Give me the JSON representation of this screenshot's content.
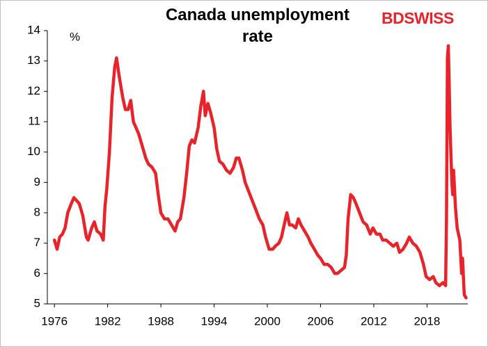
{
  "logo": "BDSWISS",
  "chart_data": {
    "type": "line",
    "title": "Canada unemployment rate",
    "y_label": "%",
    "xlim": [
      1975.2,
      2022.6
    ],
    "xticks": [
      1976,
      1982,
      1988,
      1994,
      2000,
      2006,
      2012,
      2018
    ],
    "ylim": [
      5,
      14
    ],
    "yticks": [
      5,
      6,
      7,
      8,
      9,
      10,
      11,
      12,
      13,
      14
    ],
    "grid": false,
    "x": [
      1976.0,
      1976.3,
      1976.6,
      1976.9,
      1977.2,
      1977.5,
      1977.9,
      1978.2,
      1978.5,
      1978.8,
      1979.2,
      1979.6,
      1979.8,
      1980.2,
      1980.5,
      1980.8,
      1981.2,
      1981.5,
      1981.7,
      1981.9,
      1982.2,
      1982.5,
      1982.8,
      1983.0,
      1983.3,
      1983.7,
      1984.0,
      1984.3,
      1984.6,
      1984.9,
      1985.2,
      1985.5,
      1985.9,
      1986.3,
      1986.6,
      1987.0,
      1987.4,
      1987.7,
      1988.0,
      1988.4,
      1988.8,
      1989.2,
      1989.6,
      1989.9,
      1990.2,
      1990.6,
      1990.9,
      1991.2,
      1991.5,
      1991.8,
      1992.2,
      1992.5,
      1992.8,
      1993.0,
      1993.3,
      1993.6,
      1994.0,
      1994.3,
      1994.6,
      1995.0,
      1995.4,
      1995.8,
      1996.2,
      1996.5,
      1996.8,
      1997.2,
      1997.5,
      1997.9,
      1998.3,
      1998.7,
      1999.1,
      1999.5,
      1999.8,
      2000.2,
      2000.6,
      2000.9,
      2001.3,
      2001.6,
      2001.9,
      2002.2,
      2002.5,
      2002.8,
      2003.2,
      2003.5,
      2003.8,
      2004.2,
      2004.6,
      2004.9,
      2005.3,
      2005.7,
      2006.0,
      2006.4,
      2006.8,
      2007.2,
      2007.6,
      2007.9,
      2008.3,
      2008.7,
      2008.9,
      2009.1,
      2009.4,
      2009.7,
      2010.0,
      2010.4,
      2010.8,
      2011.2,
      2011.6,
      2011.9,
      2012.3,
      2012.7,
      2013.0,
      2013.4,
      2013.8,
      2014.2,
      2014.6,
      2014.9,
      2015.3,
      2015.7,
      2016.0,
      2016.4,
      2016.8,
      2017.2,
      2017.6,
      2017.9,
      2018.3,
      2018.7,
      2019.0,
      2019.4,
      2019.8,
      2020.1,
      2020.2,
      2020.3,
      2020.4,
      2020.5,
      2020.6,
      2020.8,
      2020.9,
      2021.0,
      2021.2,
      2021.4,
      2021.7,
      2021.9,
      2022.0,
      2022.2,
      2022.4
    ],
    "series": [
      {
        "name": "Canada unemployment rate",
        "color": "#e8232a",
        "values": [
          7.1,
          6.8,
          7.2,
          7.3,
          7.5,
          8.0,
          8.3,
          8.5,
          8.4,
          8.3,
          7.9,
          7.2,
          7.1,
          7.5,
          7.7,
          7.4,
          7.3,
          7.1,
          8.2,
          8.8,
          10.0,
          11.8,
          12.8,
          13.1,
          12.5,
          11.8,
          11.4,
          11.4,
          11.7,
          11.0,
          10.8,
          10.6,
          10.2,
          9.8,
          9.6,
          9.5,
          9.3,
          8.6,
          8.0,
          7.8,
          7.8,
          7.6,
          7.4,
          7.7,
          7.8,
          8.5,
          9.3,
          10.2,
          10.4,
          10.3,
          10.8,
          11.5,
          12.0,
          11.2,
          11.6,
          11.3,
          10.8,
          10.1,
          9.7,
          9.6,
          9.4,
          9.3,
          9.5,
          9.8,
          9.8,
          9.4,
          9.0,
          8.7,
          8.4,
          8.1,
          7.8,
          7.6,
          7.2,
          6.8,
          6.8,
          6.9,
          7.0,
          7.2,
          7.6,
          8.0,
          7.6,
          7.6,
          7.5,
          7.8,
          7.6,
          7.4,
          7.2,
          7.0,
          6.8,
          6.6,
          6.5,
          6.3,
          6.3,
          6.2,
          6.0,
          6.0,
          6.1,
          6.2,
          6.6,
          7.8,
          8.6,
          8.5,
          8.3,
          8.0,
          7.7,
          7.6,
          7.3,
          7.5,
          7.3,
          7.3,
          7.1,
          7.1,
          7.0,
          6.9,
          7.0,
          6.7,
          6.8,
          7.0,
          7.2,
          7.0,
          6.9,
          6.7,
          6.3,
          5.9,
          5.8,
          5.9,
          5.7,
          5.6,
          5.7,
          5.6,
          7.8,
          13.1,
          13.5,
          12.3,
          10.8,
          9.0,
          8.6,
          9.4,
          8.2,
          7.5,
          7.1,
          6.0,
          6.5,
          5.3,
          5.2
        ]
      }
    ]
  }
}
